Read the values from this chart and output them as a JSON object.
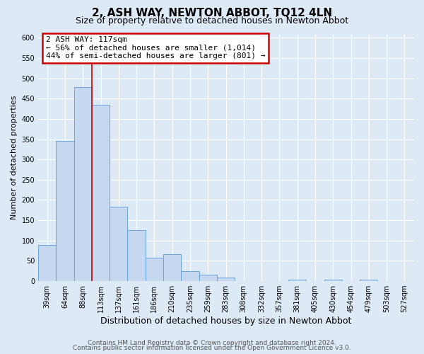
{
  "title": "2, ASH WAY, NEWTON ABBOT, TQ12 4LN",
  "subtitle": "Size of property relative to detached houses in Newton Abbot",
  "xlabel": "Distribution of detached houses by size in Newton Abbot",
  "ylabel": "Number of detached properties",
  "bin_labels": [
    "39sqm",
    "64sqm",
    "88sqm",
    "113sqm",
    "137sqm",
    "161sqm",
    "186sqm",
    "210sqm",
    "235sqm",
    "259sqm",
    "283sqm",
    "308sqm",
    "332sqm",
    "357sqm",
    "381sqm",
    "405sqm",
    "430sqm",
    "454sqm",
    "479sqm",
    "503sqm",
    "527sqm"
  ],
  "bar_heights": [
    90,
    345,
    478,
    435,
    183,
    125,
    57,
    67,
    25,
    15,
    9,
    0,
    0,
    0,
    3,
    0,
    3,
    0,
    3,
    0,
    0
  ],
  "bar_color": "#c5d8f0",
  "bar_edge_color": "#5b9bd5",
  "vline_x": 2.5,
  "vline_color": "#cc0000",
  "annotation_title": "2 ASH WAY: 117sqm",
  "annotation_line1": "← 56% of detached houses are smaller (1,014)",
  "annotation_line2": "44% of semi-detached houses are larger (801) →",
  "annotation_box_edge": "#cc0000",
  "ylim": [
    0,
    610
  ],
  "yticks": [
    0,
    50,
    100,
    150,
    200,
    250,
    300,
    350,
    400,
    450,
    500,
    550,
    600
  ],
  "footer_line1": "Contains HM Land Registry data © Crown copyright and database right 2024.",
  "footer_line2": "Contains public sector information licensed under the Open Government Licence v3.0.",
  "background_color": "#dde9f5",
  "plot_background": "#dde9f5",
  "title_fontsize": 11,
  "subtitle_fontsize": 9,
  "xlabel_fontsize": 9,
  "ylabel_fontsize": 8,
  "tick_fontsize": 7,
  "footer_fontsize": 6.5
}
